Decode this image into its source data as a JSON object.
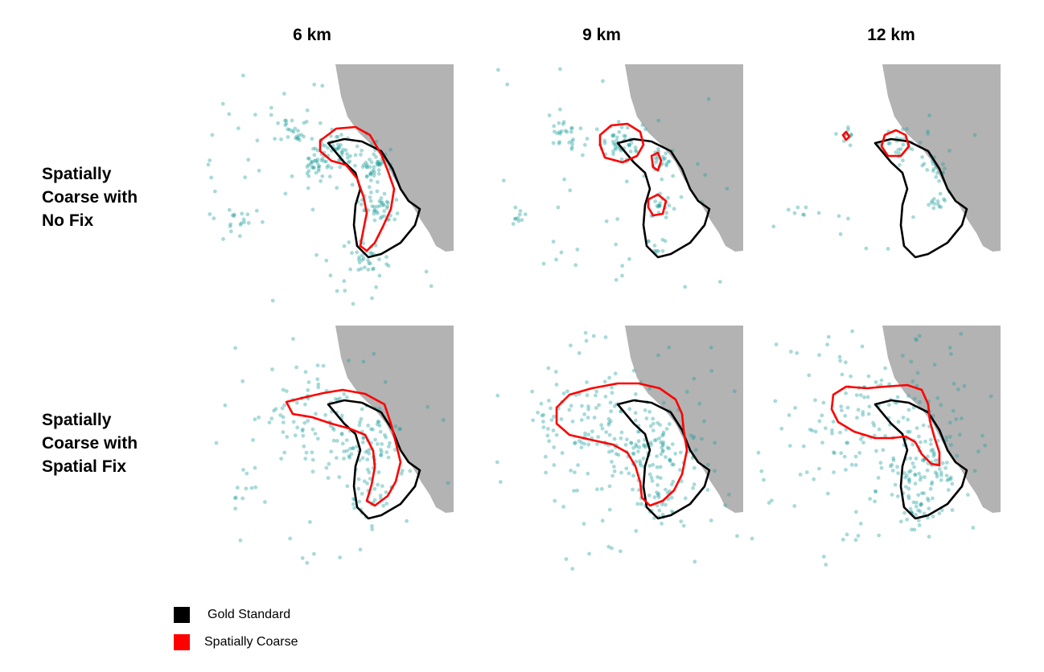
{
  "columns": [
    "6 km",
    "9 km",
    "12 km"
  ],
  "rows": [
    [
      "Spatially",
      "Coarse with",
      "No Fix"
    ],
    [
      "Spatially",
      "Coarse with",
      "Spatial Fix"
    ]
  ],
  "legend": [
    {
      "label": "Gold Standard",
      "color": "#000000"
    },
    {
      "label": "Spatially Coarse",
      "color": "#ff0000"
    }
  ],
  "colors": {
    "points": "#1a9e9a",
    "land": "#b3b3b3",
    "gold": "#000000",
    "coarse": "#ff0000"
  }
}
